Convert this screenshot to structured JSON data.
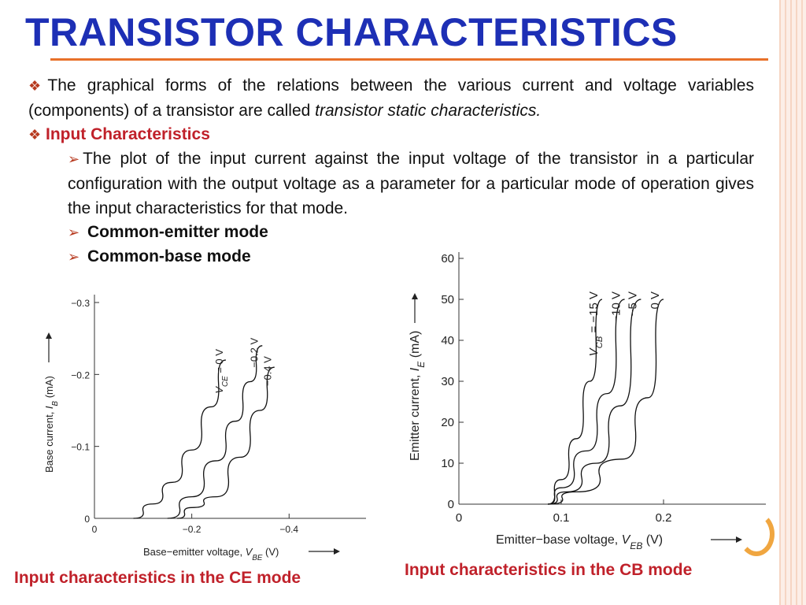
{
  "slide": {
    "title": "TRANSISTOR CHARACTERISTICS",
    "accent_color": "#1d2fb5",
    "rule_color": "#e8712a",
    "caption_color": "#c0212a"
  },
  "bullets": {
    "b1_text": "The graphical forms of the relations between the various current and voltage variables (components) of a transistor are called ",
    "b1_italic": "transistor static characteristics.",
    "b2_text": "Input Characteristics",
    "b3_text": "The plot of the input current against the input voltage of the transistor in a particular configuration with the output voltage as a parameter for a particular mode of operation gives the input characteristics for that mode.",
    "b4_text": "Common-emitter mode",
    "b5_text": "Common-base mode",
    "diamond_icon": "diamond-bullet-icon",
    "arrow_icon": "arrow-bullet-icon"
  },
  "captions": {
    "ce": "Input characteristics in the CE mode",
    "cb": "Input characteristics in the CB mode"
  },
  "chart_data": [
    {
      "type": "line",
      "xlabel_main": "Base−emitter voltage, ",
      "xlabel_var": "V",
      "xlabel_sub": "BE",
      "xlabel_unit": " (V)",
      "ylabel_main": "Base current, ",
      "ylabel_var": "I",
      "ylabel_sub": "B",
      "ylabel_unit": " (mA)",
      "xlim": [
        0,
        -0.55
      ],
      "ylim": [
        0,
        -0.3
      ],
      "xticks": [
        {
          "v": 0,
          "label": "0"
        },
        {
          "v": -0.2,
          "label": "−0.2"
        },
        {
          "v": -0.4,
          "label": "−0.4"
        }
      ],
      "yticks": [
        {
          "v": 0,
          "label": "0"
        },
        {
          "v": -0.1,
          "label": "−0.1"
        },
        {
          "v": -0.2,
          "label": "−0.2"
        },
        {
          "v": -0.3,
          "label": "−0.3"
        }
      ],
      "series": [
        {
          "name": "V_CE = 0 V",
          "label_main": "V",
          "label_sub": "CE",
          "label_rest": " = 0 V",
          "points": [
            [
              -0.08,
              0
            ],
            [
              -0.12,
              -0.02
            ],
            [
              -0.16,
              -0.05
            ],
            [
              -0.2,
              -0.095
            ],
            [
              -0.24,
              -0.155
            ],
            [
              -0.27,
              -0.22
            ]
          ]
        },
        {
          "name": "−0.2 V",
          "label_main": "−0.2 V",
          "label_sub": "",
          "label_rest": "",
          "points": [
            [
              -0.15,
              0
            ],
            [
              -0.2,
              -0.03
            ],
            [
              -0.25,
              -0.08
            ],
            [
              -0.29,
              -0.135
            ],
            [
              -0.32,
              -0.19
            ],
            [
              -0.345,
              -0.24
            ]
          ]
        },
        {
          "name": "−0.4 V",
          "label_main": "−0.4 V",
          "label_sub": "",
          "label_rest": "",
          "points": [
            [
              -0.17,
              0
            ],
            [
              -0.2,
              -0.015
            ],
            [
              -0.25,
              -0.03
            ],
            [
              -0.3,
              -0.085
            ],
            [
              -0.34,
              -0.15
            ],
            [
              -0.37,
              -0.21
            ]
          ]
        }
      ]
    },
    {
      "type": "line",
      "xlabel_main": "Emitter−base voltage, ",
      "xlabel_var": "V",
      "xlabel_sub": "EB",
      "xlabel_unit": " (V)",
      "ylabel_main": "Emitter current, ",
      "ylabel_var": "I",
      "ylabel_sub": "E",
      "ylabel_unit": " (mA)",
      "xlim": [
        0,
        0.3
      ],
      "ylim": [
        0,
        60
      ],
      "xticks": [
        {
          "v": 0,
          "label": "0"
        },
        {
          "v": 0.1,
          "label": "0.1"
        },
        {
          "v": 0.2,
          "label": "0.2"
        }
      ],
      "yticks": [
        {
          "v": 0,
          "label": "0"
        },
        {
          "v": 10,
          "label": "10"
        },
        {
          "v": 20,
          "label": "20"
        },
        {
          "v": 30,
          "label": "30"
        },
        {
          "v": 40,
          "label": "40"
        },
        {
          "v": 50,
          "label": "50"
        },
        {
          "v": 60,
          "label": "60"
        }
      ],
      "series": [
        {
          "name": "V_CB = −15 V",
          "label_main": "V",
          "label_sub": "CB",
          "label_rest": " = −15 V",
          "points": [
            [
              0.087,
              0
            ],
            [
              0.1,
              6
            ],
            [
              0.115,
              16
            ],
            [
              0.128,
              30
            ],
            [
              0.14,
              50
            ]
          ]
        },
        {
          "name": "−10 V",
          "label_main": "−10 V",
          "label_sub": "",
          "label_rest": "",
          "points": [
            [
              0.087,
              0
            ],
            [
              0.1,
              4
            ],
            [
              0.125,
              13
            ],
            [
              0.145,
              27
            ],
            [
              0.162,
              50
            ]
          ]
        },
        {
          "name": "−5 V",
          "label_main": "−5 V",
          "label_sub": "",
          "label_rest": "",
          "points": [
            [
              0.087,
              0
            ],
            [
              0.105,
              3
            ],
            [
              0.135,
              10
            ],
            [
              0.158,
              24
            ],
            [
              0.178,
              50
            ]
          ]
        },
        {
          "name": "0 V",
          "label_main": "0 V",
          "label_sub": "",
          "label_rest": "",
          "points": [
            [
              0.087,
              0
            ],
            [
              0.115,
              3
            ],
            [
              0.16,
              11
            ],
            [
              0.185,
              26
            ],
            [
              0.2,
              50
            ]
          ]
        }
      ]
    }
  ]
}
